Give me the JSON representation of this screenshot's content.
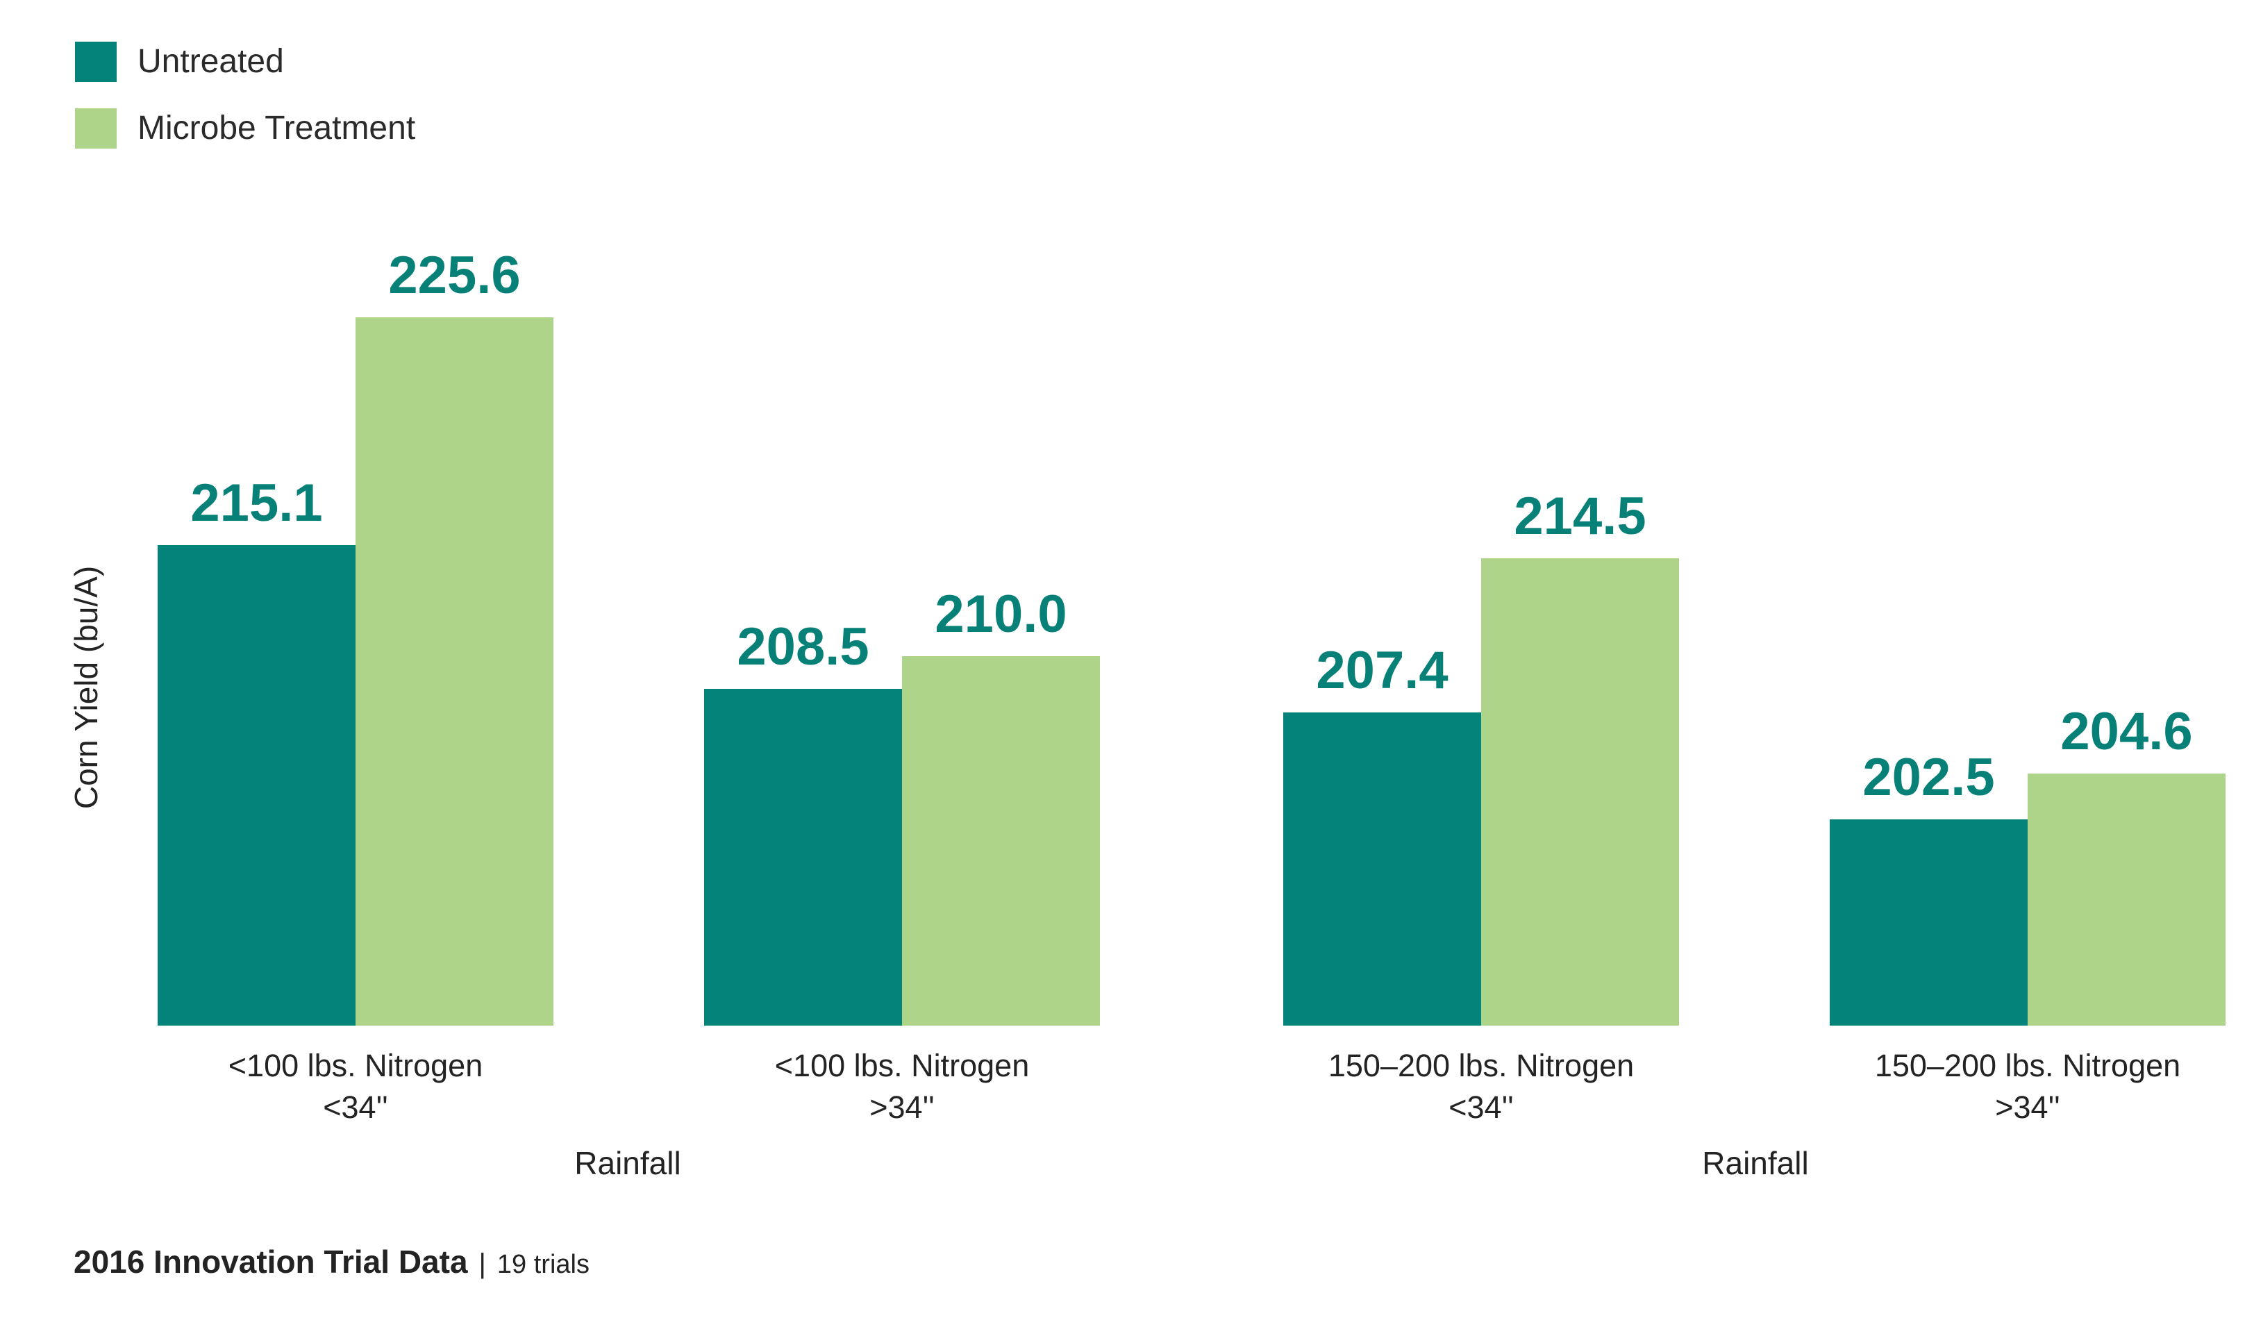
{
  "legend": {
    "items": [
      {
        "label": "Untreated",
        "color": "#038379"
      },
      {
        "label": "Microbe Treatment",
        "color": "#AED489"
      }
    ]
  },
  "chart_data": {
    "type": "bar",
    "title": "",
    "ylabel": "Corn Yield (bu/A)",
    "group_axis_labels": [
      "Rainfall",
      "Rainfall"
    ],
    "categories": [
      {
        "line1": "<100 lbs. Nitrogen",
        "line2": "<34''"
      },
      {
        "line1": "<100 lbs. Nitrogen",
        "line2": ">34''"
      },
      {
        "line1": "150–200 lbs. Nitrogen",
        "line2": "<34''"
      },
      {
        "line1": "150–200 lbs. Nitrogen",
        "line2": ">34''"
      }
    ],
    "series": [
      {
        "name": "Untreated",
        "color": "#038379",
        "values": [
          215.1,
          208.5,
          207.4,
          202.5
        ],
        "labels": [
          "215.1",
          "208.5",
          "207.4",
          "202.5"
        ]
      },
      {
        "name": "Microbe Treatment",
        "color": "#AED489",
        "values": [
          225.6,
          210.0,
          214.5,
          204.6
        ],
        "labels": [
          "225.6",
          "210.0",
          "214.5",
          "204.6"
        ]
      }
    ],
    "value_label_color": "#078178",
    "ylim": [
      193,
      228
    ],
    "grid": false,
    "axes_visible": false,
    "legend_position": "top-left"
  },
  "footer": {
    "title": "2016 Innovation Trial Data",
    "separator": "|",
    "note": "19 trials"
  }
}
